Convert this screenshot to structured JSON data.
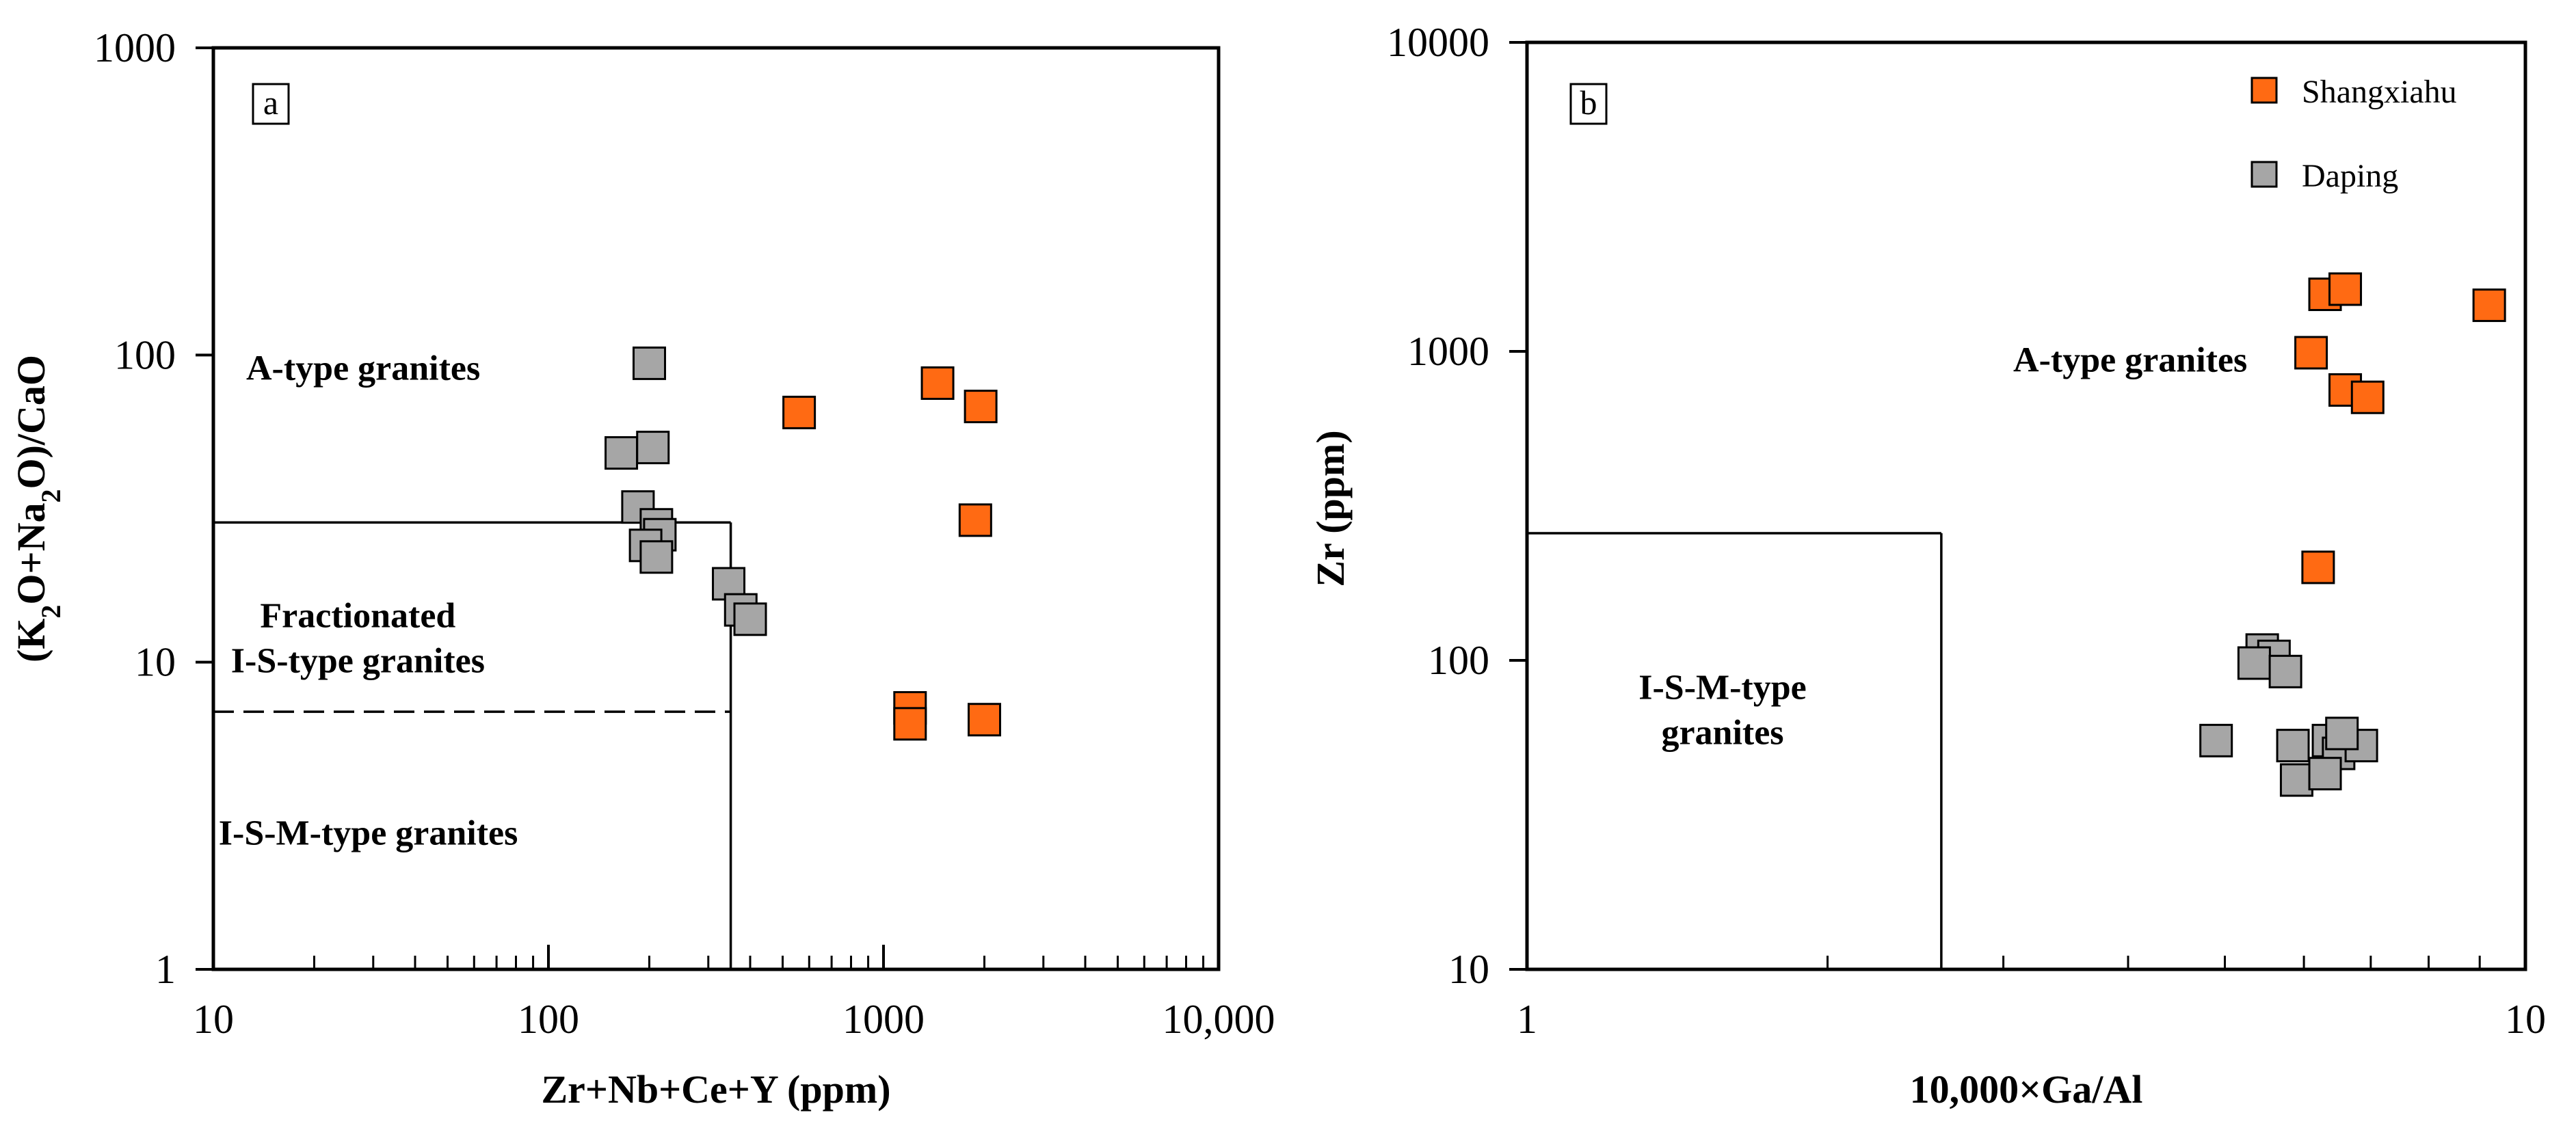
{
  "chart_data": [
    {
      "type": "scatter",
      "panel_label": "a",
      "xscale": "log",
      "yscale": "log",
      "xlim": [
        10,
        10000
      ],
      "ylim": [
        1,
        1000
      ],
      "xticks": [
        10,
        100,
        1000,
        10000
      ],
      "xtick_labels": [
        "10",
        "100",
        "1000",
        "10,000"
      ],
      "yticks": [
        1,
        10,
        100,
        1000
      ],
      "ytick_labels": [
        "1",
        "10",
        "100",
        "1000"
      ],
      "xlabel": "Zr+Nb+Ce+Y (ppm)",
      "ylabel": {
        "pre": "(K",
        "sub1": "2",
        "mid": "O+Na",
        "sub2": "2",
        "post": "O)/CaO"
      },
      "regions": [
        {
          "label": "A-type granites",
          "lines": [
            "A-type granites"
          ],
          "x": 28,
          "y": 83
        },
        {
          "label": "Fractionated I-S-type granites",
          "lines": [
            "Fractionated",
            "I-S-type granites"
          ],
          "x": 27,
          "y": 13
        },
        {
          "label": "I-S-M-type granites",
          "lines": [
            "I-S-M-type granites"
          ],
          "x": 29,
          "y": 2.55
        }
      ],
      "boundaries": [
        {
          "style": "solid",
          "points": [
            [
              10,
              28.5
            ],
            [
              350,
              28.5
            ]
          ]
        },
        {
          "style": "solid",
          "points": [
            [
              350,
              28.5
            ],
            [
              350,
              1
            ]
          ]
        },
        {
          "style": "dashed",
          "points": [
            [
              10,
              6.9
            ],
            [
              350,
              6.9
            ]
          ]
        }
      ],
      "series": [
        {
          "name": "Shangxiahu",
          "color": "#FF6A13",
          "points": [
            [
              560,
              65
            ],
            [
              1450,
              81
            ],
            [
              1950,
              68
            ],
            [
              1880,
              29
            ],
            [
              1200,
              7.1
            ],
            [
              1200,
              6.3
            ],
            [
              2000,
              6.5
            ]
          ]
        },
        {
          "name": "Daping",
          "color": "#A6A6A6",
          "points": [
            [
              200,
              94
            ],
            [
              165,
              48
            ],
            [
              205,
              50
            ],
            [
              185,
              32
            ],
            [
              210,
              28
            ],
            [
              215,
              26
            ],
            [
              195,
              24
            ],
            [
              210,
              22
            ],
            [
              345,
              18
            ],
            [
              375,
              14.8
            ],
            [
              400,
              13.8
            ]
          ]
        }
      ]
    },
    {
      "type": "scatter",
      "panel_label": "b",
      "xscale": "log",
      "yscale": "log",
      "xlim": [
        1,
        10
      ],
      "ylim": [
        10,
        10000
      ],
      "xticks": [
        1,
        10
      ],
      "xtick_labels": [
        "1",
        "10"
      ],
      "yticks": [
        10,
        100,
        1000,
        10000
      ],
      "ytick_labels": [
        "10",
        "100",
        "1000",
        "10000"
      ],
      "xlabel": "10,000×Ga/Al",
      "ylabel": "Zr (ppm)",
      "regions": [
        {
          "label": "A-type granites",
          "lines": [
            "A-type granites"
          ],
          "x": 4.02,
          "y": 860
        },
        {
          "label": "I-S-M-type granites",
          "lines": [
            "I-S-M-type",
            "granites"
          ],
          "x": 1.57,
          "y": 75
        }
      ],
      "boundaries": [
        {
          "style": "solid",
          "points": [
            [
              1,
              258
            ],
            [
              2.6,
              258
            ]
          ]
        },
        {
          "style": "solid",
          "points": [
            [
              2.6,
              258
            ],
            [
              2.6,
              10
            ]
          ]
        }
      ],
      "legend": {
        "position": "top-right",
        "items": [
          {
            "label": "Shangxiahu",
            "color": "#FF6A13"
          },
          {
            "label": "Daping",
            "color": "#A6A6A6"
          }
        ]
      },
      "series": [
        {
          "name": "Shangxiahu",
          "color": "#FF6A13",
          "points": [
            [
              6.3,
              1530
            ],
            [
              6.6,
              1590
            ],
            [
              9.2,
              1410
            ],
            [
              6.1,
              990
            ],
            [
              6.6,
              750
            ],
            [
              6.95,
              710
            ],
            [
              6.2,
              200
            ]
          ]
        },
        {
          "name": "Daping",
          "color": "#A6A6A6",
          "points": [
            [
              5.45,
              108
            ],
            [
              5.6,
              103
            ],
            [
              5.35,
              98
            ],
            [
              5.75,
              92
            ],
            [
              4.9,
              55
            ],
            [
              5.85,
              53
            ],
            [
              6.35,
              55
            ],
            [
              6.5,
              50
            ],
            [
              6.85,
              53
            ],
            [
              6.55,
              58
            ],
            [
              5.9,
              41
            ],
            [
              6.3,
              43
            ]
          ]
        }
      ]
    }
  ]
}
